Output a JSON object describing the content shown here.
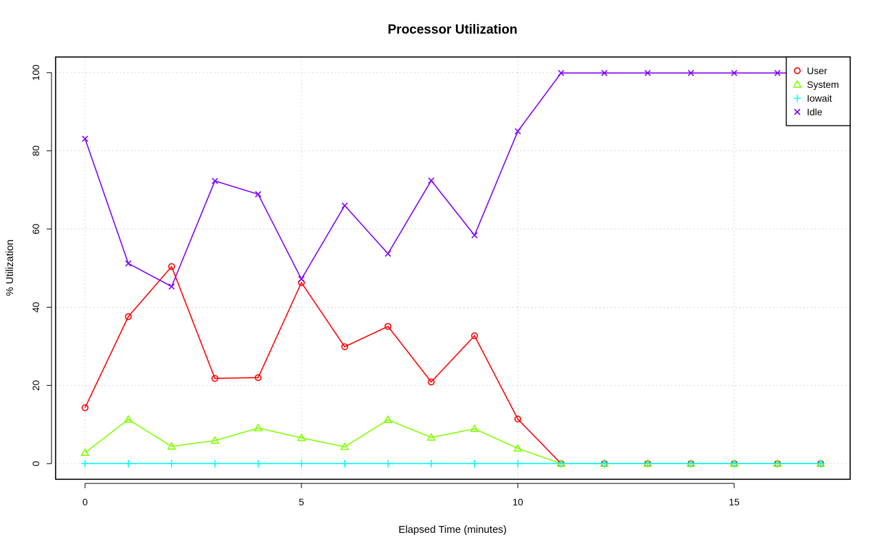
{
  "chart_data": {
    "type": "line",
    "title": "Processor Utilization",
    "xlabel": "Elapsed Time (minutes)",
    "ylabel": "% Utilization",
    "xlim": [
      -0.68,
      17.68
    ],
    "ylim": [
      -4,
      104
    ],
    "x_ticks": [
      0,
      5,
      10,
      15
    ],
    "y_ticks": [
      0,
      20,
      40,
      60,
      80,
      100
    ],
    "x_tick_labels": [
      "0",
      "5",
      "10",
      "15"
    ],
    "y_tick_labels": [
      "0",
      "20",
      "40",
      "60",
      "80",
      "100"
    ],
    "grid": true,
    "legend_position": "top-right",
    "x": [
      0,
      1,
      2,
      3,
      4,
      5,
      6,
      7,
      8,
      9,
      10,
      11,
      12,
      13,
      14,
      15,
      16,
      17
    ],
    "series": [
      {
        "name": "User",
        "color": "#ff0000",
        "marker": "circle",
        "values": [
          14.3,
          37.6,
          50.4,
          21.8,
          22.0,
          46.3,
          29.9,
          35.1,
          20.9,
          32.7,
          11.4,
          0,
          0,
          0,
          0,
          0,
          0,
          0
        ]
      },
      {
        "name": "System",
        "color": "#80ff00",
        "marker": "triangle",
        "values": [
          2.8,
          11.3,
          4.4,
          5.9,
          9.1,
          6.6,
          4.3,
          11.2,
          6.7,
          8.9,
          3.9,
          0,
          0,
          0,
          0,
          0,
          0,
          0
        ]
      },
      {
        "name": "Iowait",
        "color": "#00ffff",
        "marker": "plus",
        "values": [
          0,
          0,
          0,
          0,
          0,
          0,
          0,
          0,
          0,
          0,
          0,
          0,
          0,
          0,
          0,
          0,
          0,
          0
        ]
      },
      {
        "name": "Idle",
        "color": "#8000ff",
        "marker": "cross",
        "values": [
          83.1,
          51.2,
          45.3,
          72.3,
          68.9,
          47.2,
          66.0,
          53.7,
          72.4,
          58.4,
          85.0,
          99.9,
          99.9,
          99.9,
          99.9,
          99.9,
          99.9,
          99.9
        ]
      }
    ]
  }
}
